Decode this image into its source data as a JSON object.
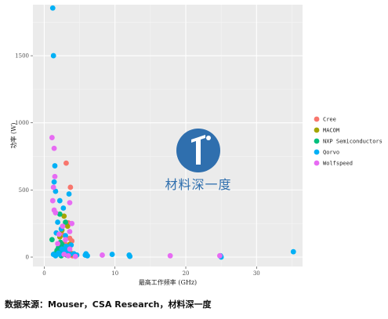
{
  "chart_data": {
    "type": "scatter",
    "title": "",
    "xlabel": "最高工作频率 (GHz)",
    "ylabel": "功率 (W)",
    "xlim": [
      -1.6,
      36.5
    ],
    "ylim": [
      -70,
      1880
    ],
    "x_ticks": [
      0,
      10,
      20,
      30
    ],
    "y_ticks": [
      0,
      500,
      1000,
      1500
    ],
    "x_tick_labels": [
      "0",
      "10",
      "20",
      "30"
    ],
    "y_tick_labels": [
      "0",
      "500",
      "1000",
      "1500"
    ],
    "grid": true,
    "legend_position": "right",
    "series": [
      {
        "name": "Cree",
        "color": "#F8766D",
        "points": [
          [
            3.1,
            700
          ],
          [
            3.7,
            520
          ],
          [
            3.4,
            255
          ],
          [
            2.6,
            165
          ],
          [
            3.6,
            140
          ],
          [
            3.9,
            120
          ],
          [
            3.0,
            80
          ],
          [
            2.7,
            60
          ],
          [
            3.3,
            45
          ],
          [
            3.8,
            30
          ],
          [
            2.4,
            20
          ],
          [
            3.5,
            15
          ],
          [
            4.0,
            10
          ],
          [
            2.9,
            100
          ],
          [
            3.2,
            35
          ]
        ]
      },
      {
        "name": "MACOM",
        "color": "#A3A500",
        "points": [
          [
            2.8,
            305
          ],
          [
            3.3,
            230
          ],
          [
            2.5,
            200
          ],
          [
            3.6,
            95
          ],
          [
            2.2,
            150
          ],
          [
            3.1,
            40
          ],
          [
            3.8,
            20
          ]
        ]
      },
      {
        "name": "NXP Semiconductors",
        "color": "#00BF7D",
        "points": [
          [
            2.2,
            320
          ],
          [
            3.0,
            260
          ],
          [
            1.1,
            130
          ],
          [
            2.3,
            110
          ],
          [
            2.5,
            95
          ],
          [
            2.6,
            80
          ],
          [
            2.7,
            60
          ],
          [
            2.0,
            70
          ],
          [
            2.9,
            55
          ],
          [
            3.4,
            50
          ],
          [
            2.1,
            40
          ],
          [
            2.6,
            30
          ],
          [
            3.0,
            20
          ],
          [
            2.4,
            10
          ],
          [
            3.2,
            15
          ],
          [
            1.5,
            25
          ],
          [
            1.8,
            50
          ]
        ]
      },
      {
        "name": "Qorvo",
        "color": "#00B0F6",
        "points": [
          [
            1.2,
            1855
          ],
          [
            1.3,
            1500
          ],
          [
            1.5,
            680
          ],
          [
            1.4,
            560
          ],
          [
            1.6,
            490
          ],
          [
            2.2,
            420
          ],
          [
            2.7,
            365
          ],
          [
            3.5,
            470
          ],
          [
            1.9,
            260
          ],
          [
            2.4,
            210
          ],
          [
            1.7,
            180
          ],
          [
            3.0,
            160
          ],
          [
            3.8,
            90
          ],
          [
            3.1,
            80
          ],
          [
            2.5,
            60
          ],
          [
            2.8,
            45
          ],
          [
            3.3,
            40
          ],
          [
            2.0,
            30
          ],
          [
            1.3,
            20
          ],
          [
            4.2,
            25
          ],
          [
            5.9,
            25
          ],
          [
            6.1,
            10
          ],
          [
            5.8,
            15
          ],
          [
            9.6,
            20
          ],
          [
            12.0,
            15
          ],
          [
            12.1,
            5
          ],
          [
            24.9,
            10
          ],
          [
            25.0,
            0
          ],
          [
            35.2,
            40
          ],
          [
            2.2,
            20
          ],
          [
            3.6,
            20
          ],
          [
            4.6,
            15
          ],
          [
            1.6,
            10
          ]
        ]
      },
      {
        "name": "Wolfspeed",
        "color": "#E76BF3",
        "points": [
          [
            1.1,
            890
          ],
          [
            1.4,
            810
          ],
          [
            1.5,
            600
          ],
          [
            1.3,
            520
          ],
          [
            1.2,
            420
          ],
          [
            3.6,
            405
          ],
          [
            1.4,
            350
          ],
          [
            1.6,
            330
          ],
          [
            3.9,
            250
          ],
          [
            3.6,
            190
          ],
          [
            2.6,
            230
          ],
          [
            3.0,
            130
          ],
          [
            1.9,
            100
          ],
          [
            3.6,
            60
          ],
          [
            8.2,
            15
          ],
          [
            17.8,
            10
          ],
          [
            24.8,
            10
          ],
          [
            2.8,
            20
          ],
          [
            3.4,
            10
          ],
          [
            4.4,
            5
          ],
          [
            2.1,
            170
          ]
        ]
      }
    ]
  },
  "source_note": "数据来源：Mouser，CSA Research，材料深一度",
  "watermark": {
    "text": "材料深一度"
  }
}
